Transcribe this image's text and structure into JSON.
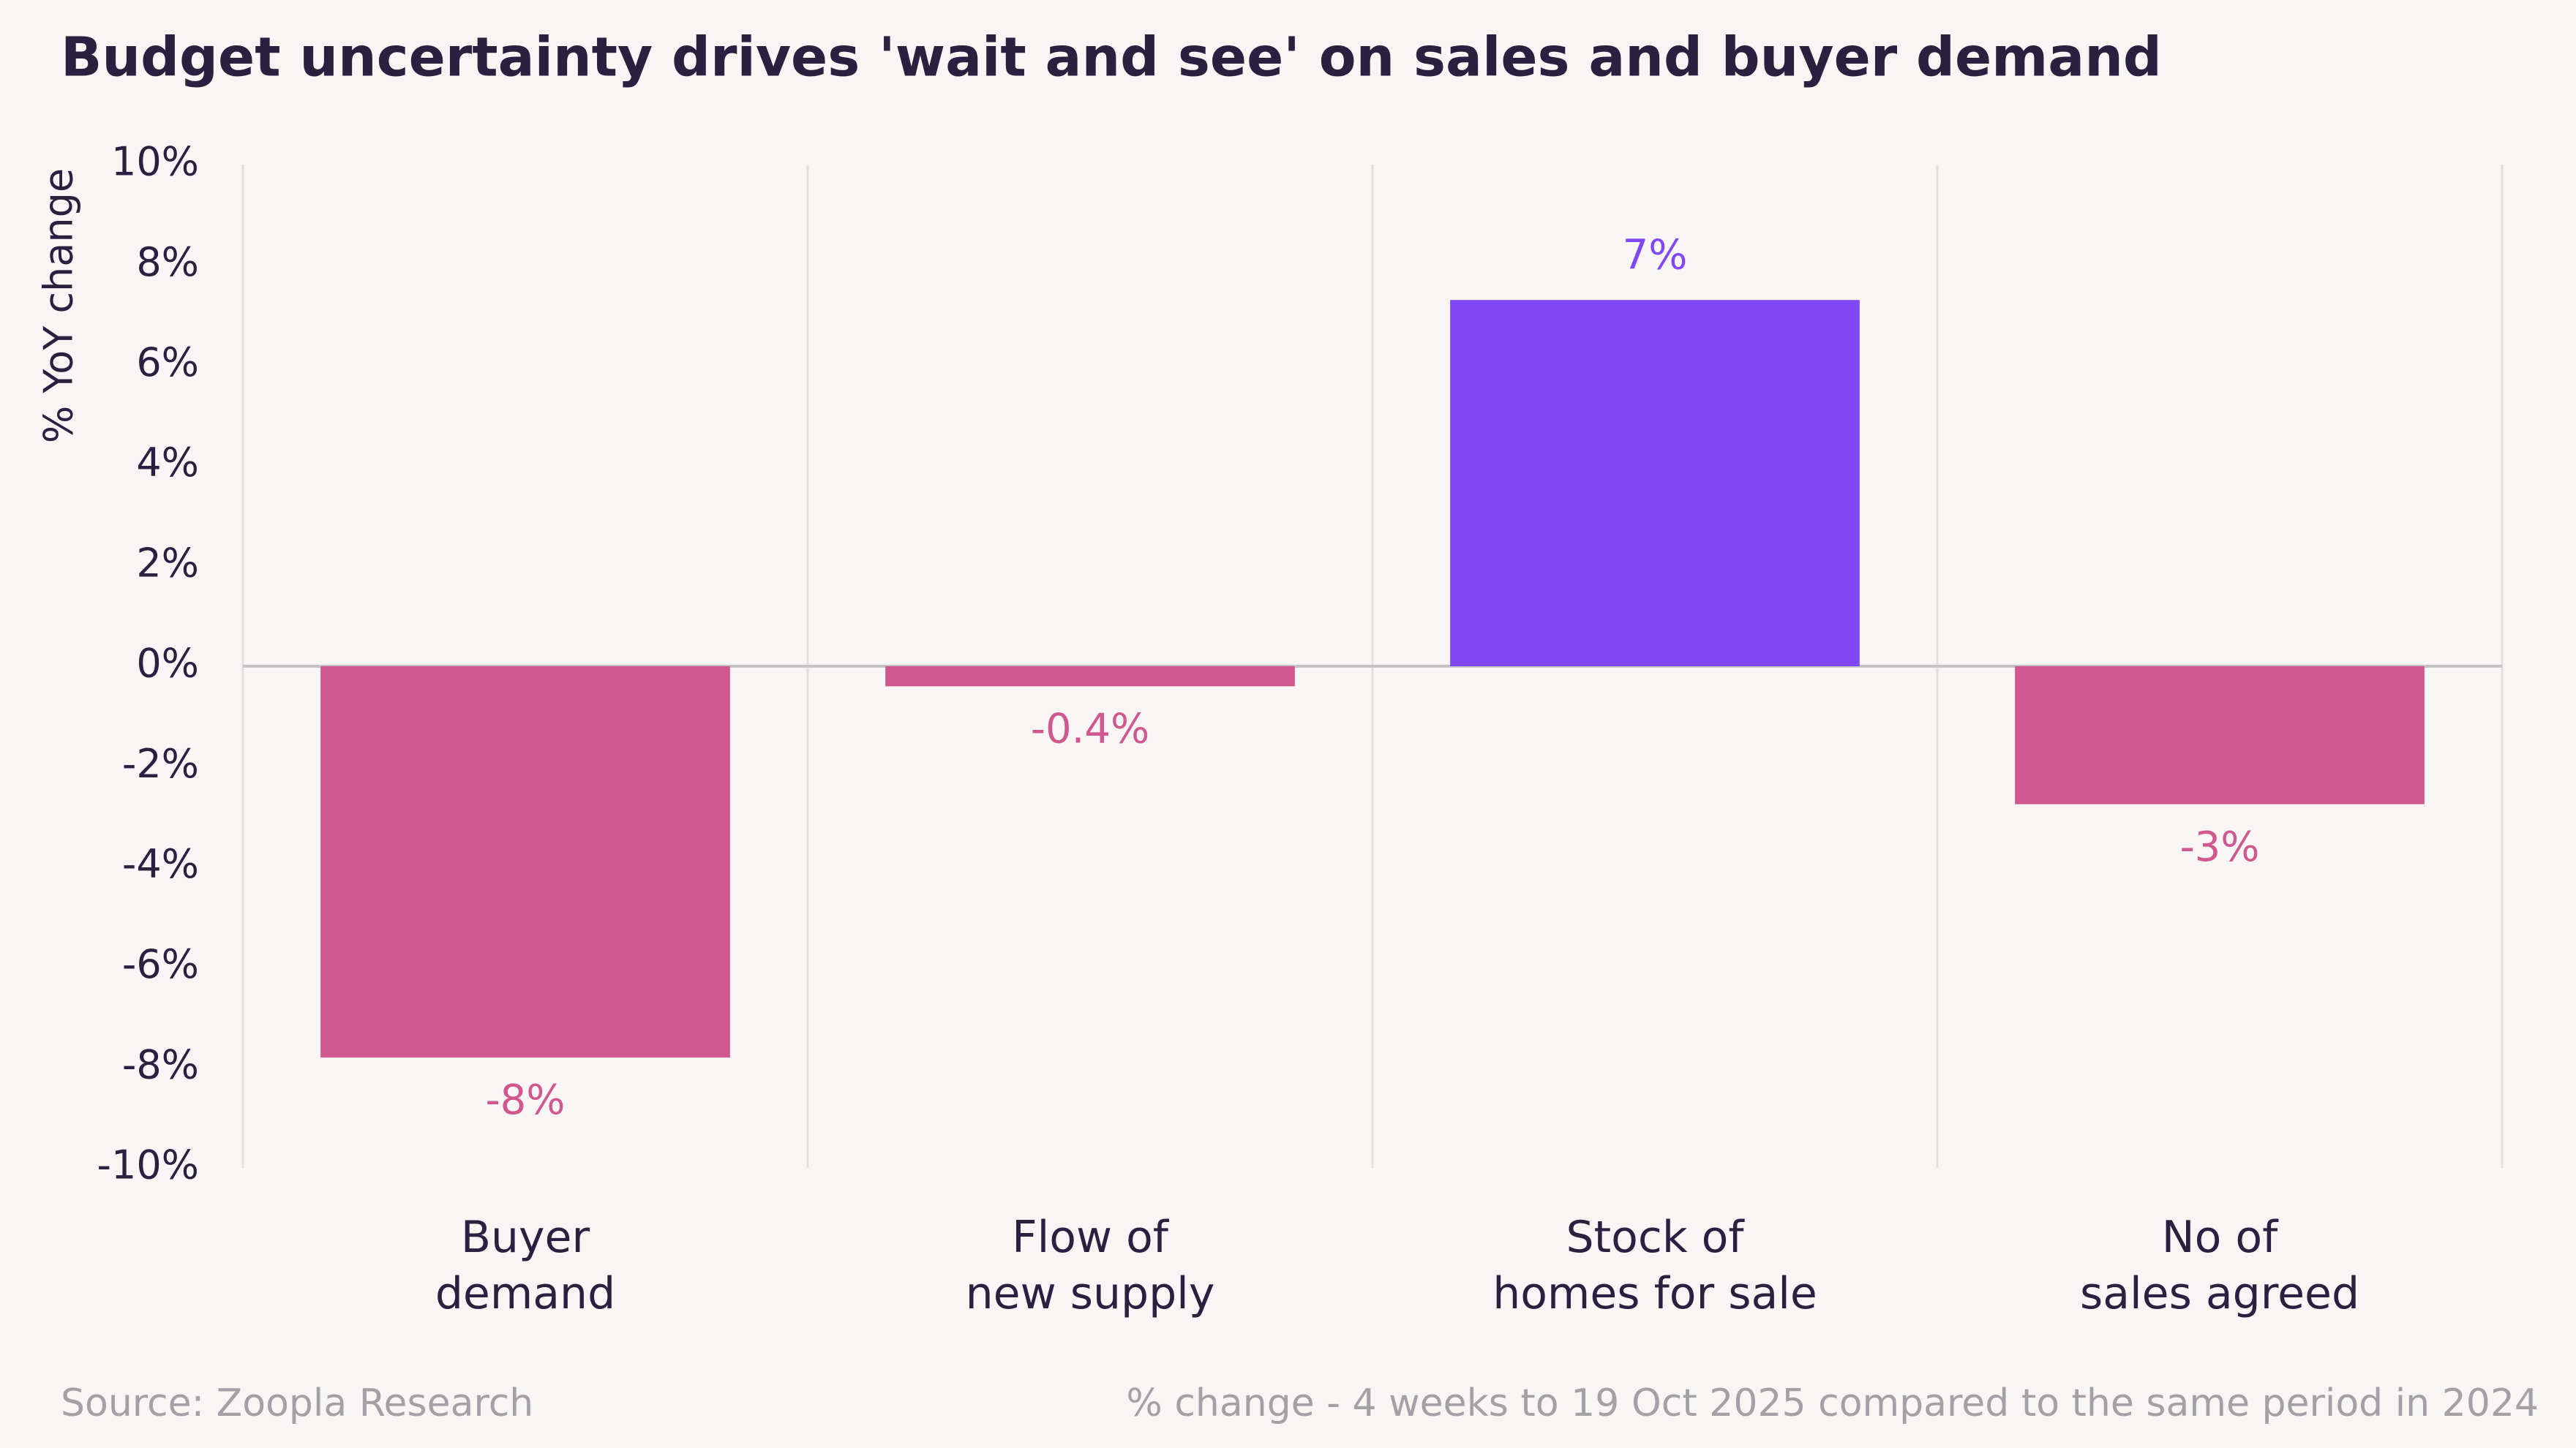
{
  "chart_data": {
    "type": "bar",
    "title": "Budget uncertainty drives 'wait and see' on sales and buyer demand",
    "y_label": "% YoY change",
    "categories": [
      "Buyer\ndemand",
      "Flow of\nnew supply",
      "Stock of\nhomes for sale",
      "No of\nsales agreed"
    ],
    "values": [
      -7.8,
      -0.4,
      7.3,
      -2.75
    ],
    "value_labels": [
      "-8%",
      "-0.4%",
      "7%",
      "-3%"
    ],
    "colors": [
      "#d1578f",
      "#d1578f",
      "#8247f5",
      "#d1578f"
    ],
    "ylim": [
      -10,
      10
    ],
    "yticks": [
      {
        "value": 10,
        "label": "10%"
      },
      {
        "value": 8,
        "label": "8%"
      },
      {
        "value": 6,
        "label": "6%"
      },
      {
        "value": 4,
        "label": "4%"
      },
      {
        "value": 2,
        "label": "2%"
      },
      {
        "value": 0,
        "label": "0%"
      },
      {
        "value": -2,
        "label": "-2%"
      },
      {
        "value": -4,
        "label": "-4%"
      },
      {
        "value": -6,
        "label": "-6%"
      },
      {
        "value": -8,
        "label": "-8%"
      },
      {
        "value": -10,
        "label": "-10%"
      }
    ],
    "source": "Source: Zoopla Research",
    "note": "% change - 4 weeks to 19 Oct 2025 compared to the same period in 2024"
  }
}
